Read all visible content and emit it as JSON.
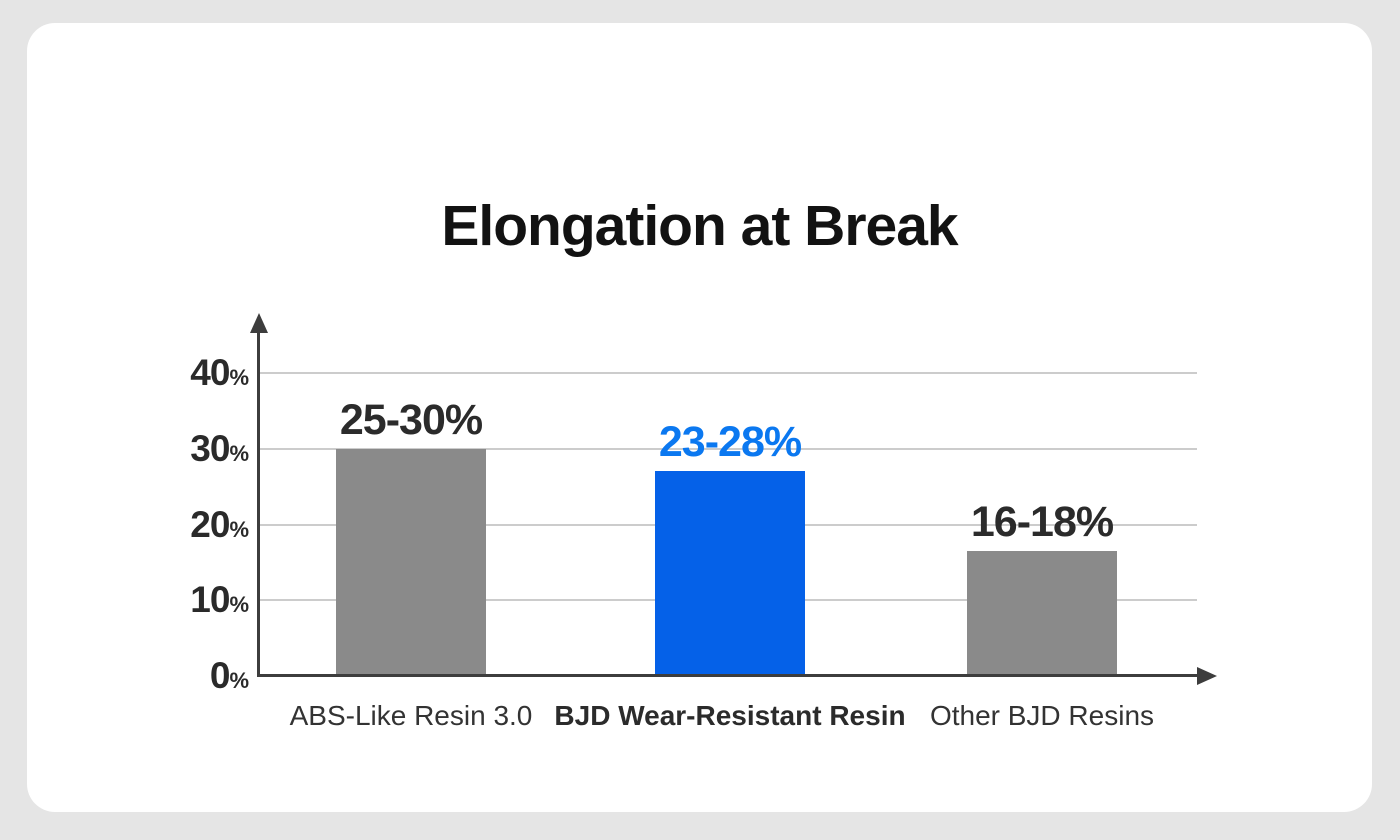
{
  "page": {
    "background_color": "#e5e5e5",
    "card_color": "#ffffff"
  },
  "chart_data": {
    "type": "bar",
    "title": "Elongation at Break",
    "categories": [
      "ABS-Like Resin 3.0",
      "BJD Wear-Resistant Resin",
      "Other BJD Resins"
    ],
    "series": [
      {
        "name": "Elongation at Break",
        "values": [
          30,
          27,
          16.5
        ]
      }
    ],
    "bars": [
      {
        "category": "ABS-Like Resin 3.0",
        "value": 30,
        "range_label": "25-30%",
        "color": "#8a8a8a",
        "label_color": "#2b2b2b",
        "emphasized": false
      },
      {
        "category": "BJD Wear-Resistant Resin",
        "value": 27,
        "range_label": "23-28%",
        "color": "#0561e8",
        "label_color": "#0b78f0",
        "emphasized": true
      },
      {
        "category": "Other BJD Resins",
        "value": 16.5,
        "range_label": "16-18%",
        "color": "#8a8a8a",
        "label_color": "#2b2b2b",
        "emphasized": false
      }
    ],
    "xlabel": "",
    "ylabel": "",
    "yticks": [
      0,
      10,
      20,
      30,
      40
    ],
    "ytick_suffix": "%",
    "ylim": [
      0,
      45
    ],
    "grid": true,
    "legend_position": "none",
    "axis_color": "#3d3d3d",
    "gridline_color": "#cccccc",
    "tick_label_color": "#2a2a2a",
    "title_color": "#121212"
  }
}
